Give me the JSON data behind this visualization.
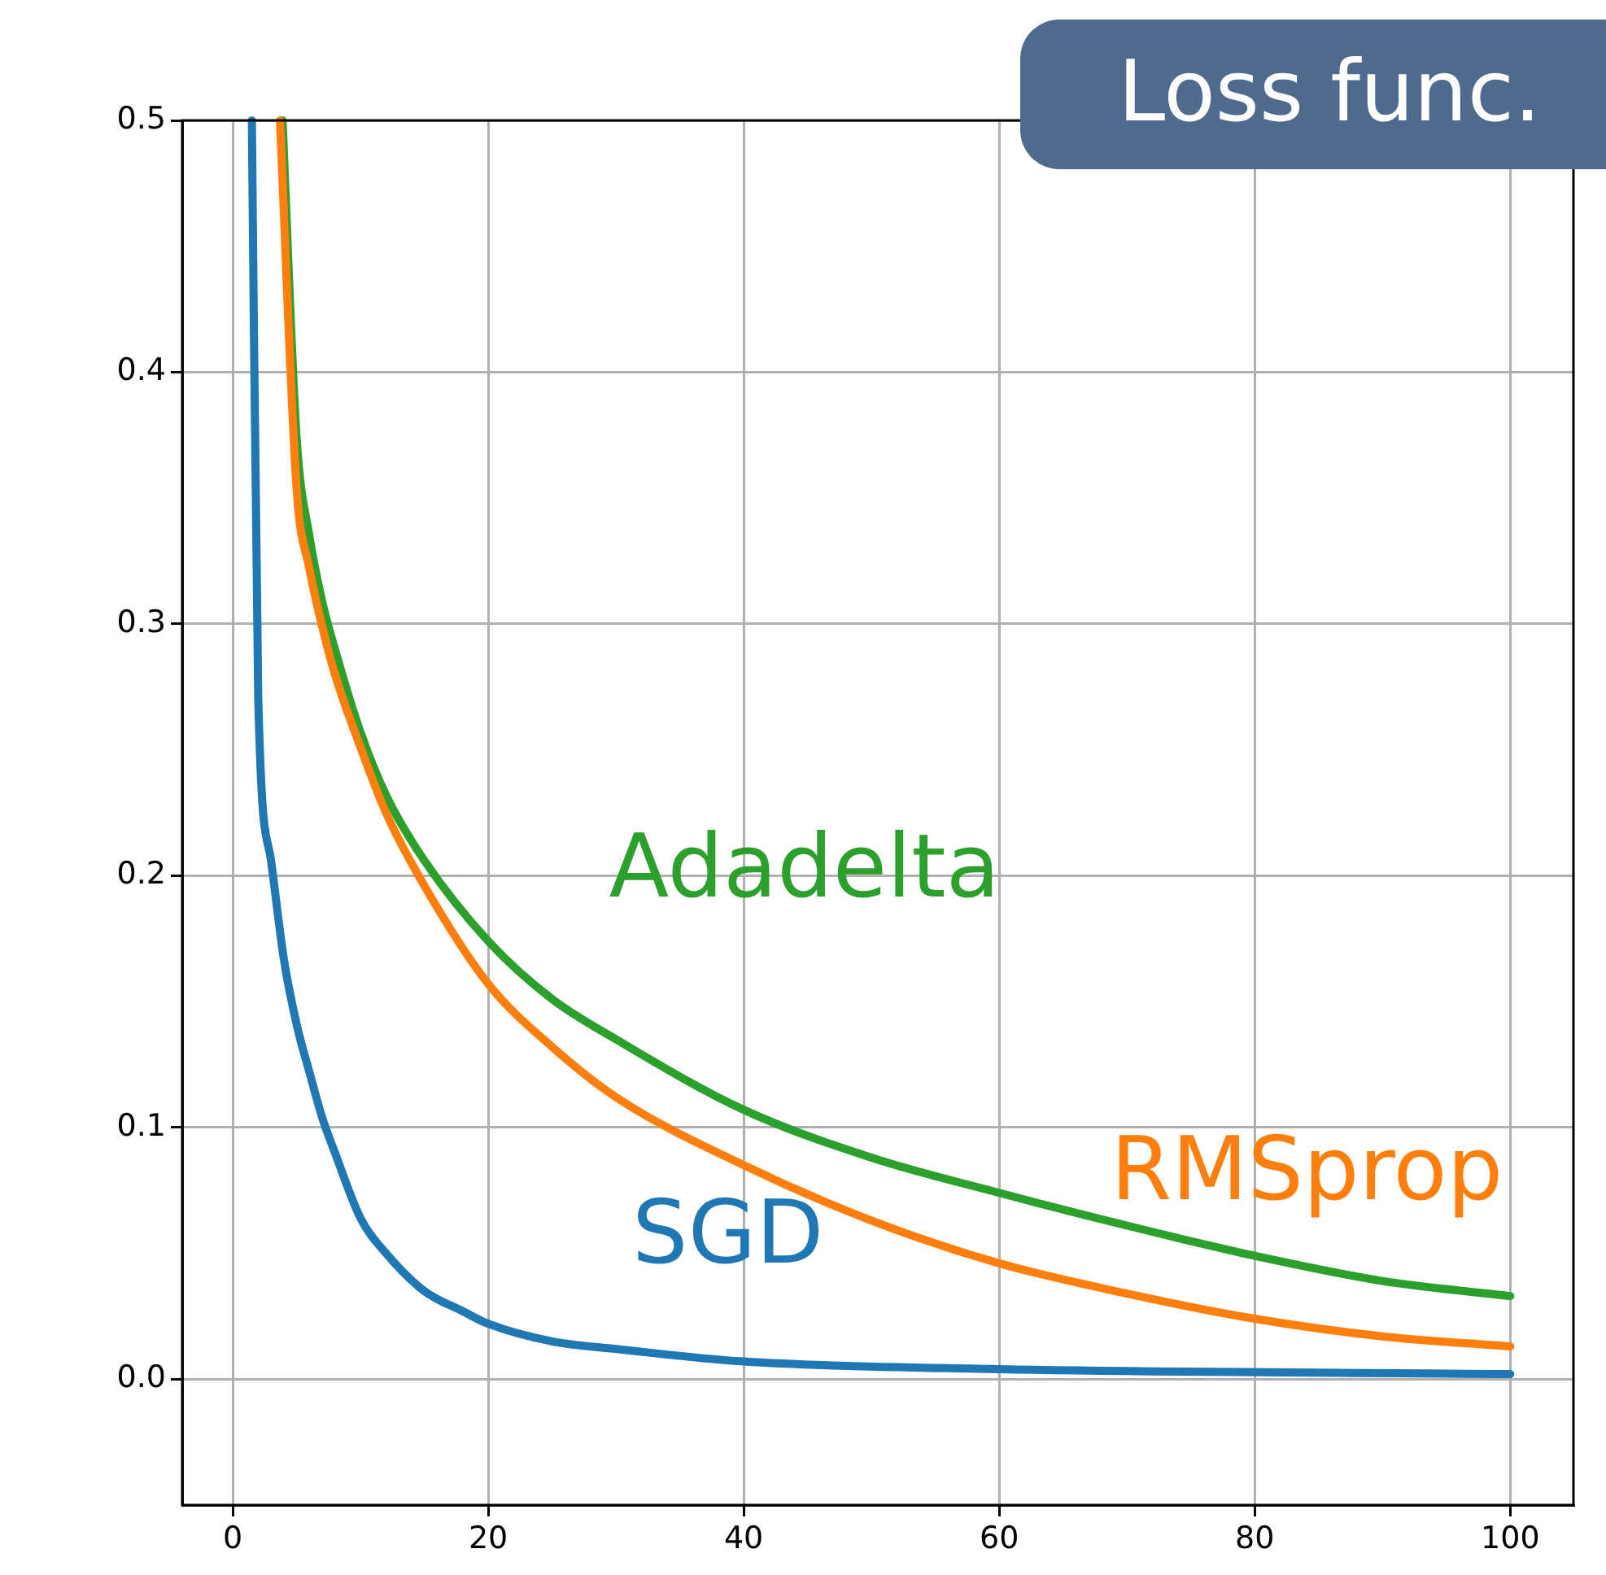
{
  "chart_data": {
    "type": "line",
    "title": "Loss func.",
    "xlim": [
      -3.95,
      104.95
    ],
    "xticks": [
      0,
      20,
      40,
      60,
      80,
      100
    ],
    "ylim": [
      -0.05,
      0.5
    ],
    "yticks": [
      {
        "value": 0,
        "label": "0.0"
      },
      0.1,
      0.2,
      0.3,
      0.4,
      0.5
    ],
    "grid": true,
    "legend": false,
    "marker": "none",
    "line_style": "solid",
    "series": [
      {
        "name": "SGD",
        "color": "#1f77b4",
        "x": [
          1.5,
          2,
          3,
          4,
          5,
          6,
          7,
          8,
          10,
          12,
          15,
          18,
          20,
          25,
          30,
          40,
          60,
          100
        ],
        "values": [
          0.5,
          0.27,
          0.206,
          0.167,
          0.141,
          0.122,
          0.104,
          0.09,
          0.064,
          0.05,
          0.035,
          0.027,
          0.022,
          0.015,
          0.012,
          0.007,
          0.004,
          0.002
        ]
      },
      {
        "name": "RMSprop",
        "color": "#ff7f0e",
        "x": [
          3.7,
          5,
          6,
          7,
          8,
          10,
          12,
          15,
          20,
          25,
          30,
          40,
          50,
          60,
          70,
          80,
          90,
          100
        ],
        "values": [
          0.5,
          0.354,
          0.322,
          0.299,
          0.28,
          0.251,
          0.225,
          0.196,
          0.157,
          0.132,
          0.112,
          0.085,
          0.063,
          0.046,
          0.034,
          0.024,
          0.017,
          0.013
        ]
      },
      {
        "name": "Adadelta",
        "color": "#2ca02c",
        "x": [
          3.9,
          5,
          6,
          7,
          8,
          10,
          12,
          15,
          20,
          25,
          30,
          40,
          50,
          60,
          70,
          80,
          90,
          100
        ],
        "values": [
          0.5,
          0.374,
          0.335,
          0.309,
          0.29,
          0.257,
          0.232,
          0.206,
          0.174,
          0.151,
          0.135,
          0.107,
          0.088,
          0.074,
          0.061,
          0.049,
          0.039,
          0.033
        ]
      }
    ]
  }
}
